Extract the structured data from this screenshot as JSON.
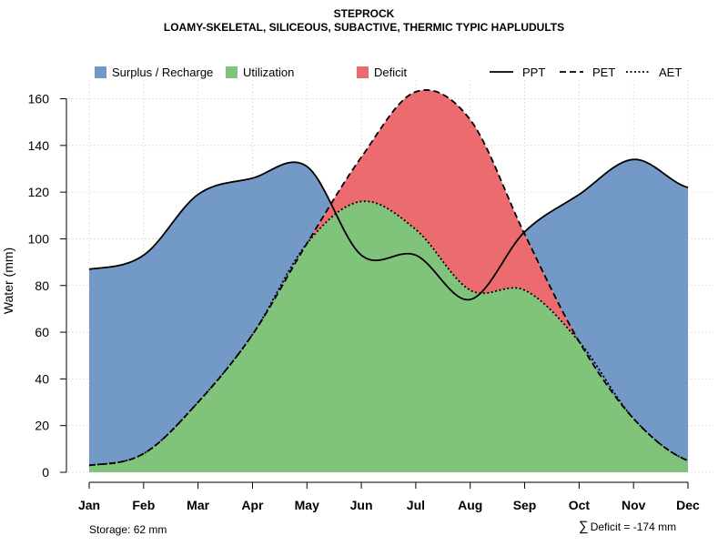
{
  "title": "STEPROCK",
  "subtitle": "LOAMY-SKELETAL, SILICEOUS, SUBACTIVE, THERMIC TYPIC HAPLUDULTS",
  "storage_label": "Storage: 62 mm",
  "deficit_sum_label": "Deficit = -174 mm",
  "colors": {
    "surplus": "#7399c6",
    "utilization": "#80c47c",
    "deficit": "#ec6b6e",
    "grid": "#d0d0d0",
    "line": "#000000"
  },
  "chart_data": {
    "type": "area",
    "title": "STEPROCK",
    "subtitle": "LOAMY-SKELETAL, SILICEOUS, SUBACTIVE, THERMIC TYPIC HAPLUDULTS",
    "ylabel": "Water (mm)",
    "xlabel": "",
    "categories": [
      "Jan",
      "Feb",
      "Mar",
      "Apr",
      "May",
      "Jun",
      "Jul",
      "Aug",
      "Sep",
      "Oct",
      "Nov",
      "Dec"
    ],
    "ylim": [
      0,
      168
    ],
    "yticks": [
      0,
      20,
      40,
      60,
      80,
      100,
      120,
      140,
      160
    ],
    "grid": true,
    "legend_position": "top",
    "legend": [
      {
        "key": "surplus",
        "label": "Surplus / Recharge",
        "kind": "fill"
      },
      {
        "key": "utilization",
        "label": "Utilization",
        "kind": "fill"
      },
      {
        "key": "deficit",
        "label": "Deficit",
        "kind": "fill"
      },
      {
        "key": "ppt",
        "label": "PPT",
        "kind": "solid"
      },
      {
        "key": "pet",
        "label": "PET",
        "kind": "dashed"
      },
      {
        "key": "aet",
        "label": "AET",
        "kind": "dotted"
      }
    ],
    "series": [
      {
        "name": "PPT",
        "values": [
          87,
          93,
          119,
          126,
          131,
          93,
          93,
          74,
          103,
          119,
          134,
          122
        ]
      },
      {
        "name": "PET",
        "values": [
          3,
          8,
          30,
          59,
          98,
          135,
          163,
          151,
          102,
          56,
          23,
          5
        ]
      },
      {
        "name": "AET",
        "values": [
          3,
          8,
          30,
          59,
          98,
          116,
          104,
          78,
          78,
          56,
          23,
          5
        ]
      }
    ]
  }
}
